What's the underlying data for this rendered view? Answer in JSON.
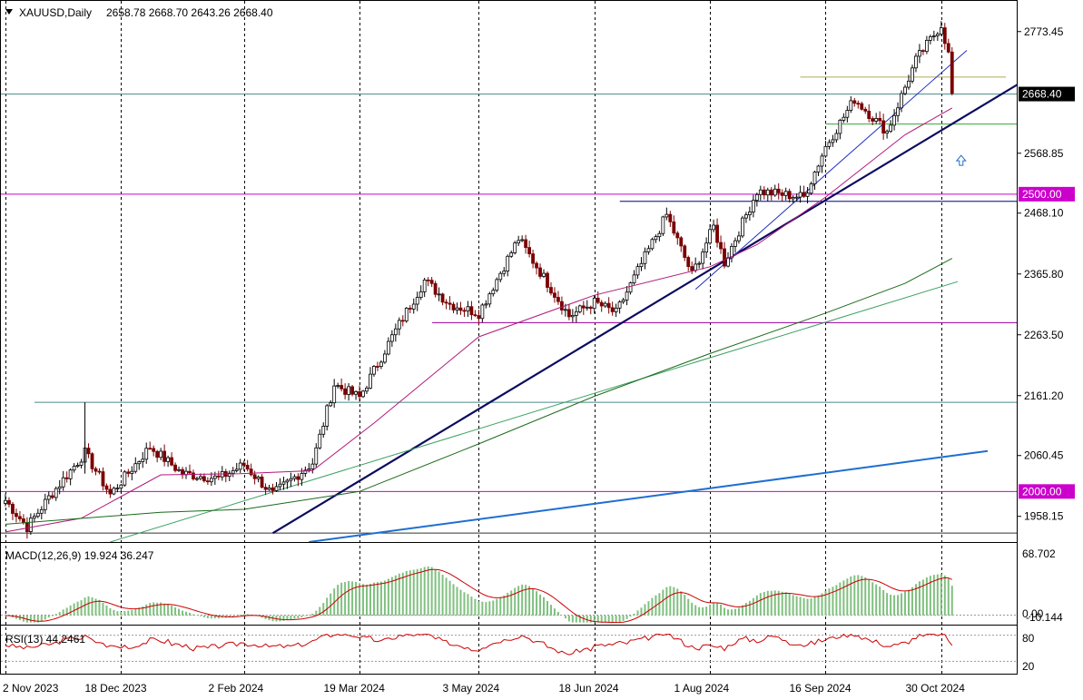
{
  "header": {
    "symbol": "XAUUSD,Daily",
    "ohlc": "2658.78 2668.70 2643.26 2668.40"
  },
  "chart_data": {
    "type": "candlestick",
    "symbol": "XAUUSD",
    "timeframe": "Daily",
    "price_axis": {
      "ticks": [
        1958.15,
        2060.45,
        2161.2,
        2263.5,
        2365.8,
        2468.1,
        2568.85,
        2773.45
      ],
      "ylim": [
        1915,
        2825
      ]
    },
    "time_axis": {
      "labels": [
        "2 Nov 2023",
        "18 Dec 2023",
        "2 Feb 2024",
        "19 Mar 2024",
        "3 May 2024",
        "18 Jun 2024",
        "1 Aug 2024",
        "16 Sep 2024",
        "30 Oct 2024"
      ]
    },
    "price_key_points": [
      [
        "2 Nov 2023",
        1985
      ],
      [
        "10 Nov 2023",
        1940
      ],
      [
        "20 Nov 2023",
        1990
      ],
      [
        "4 Dec 2023",
        2065
      ],
      [
        "13 Dec 2023",
        1995
      ],
      [
        "28 Dec 2023",
        2075
      ],
      [
        "10 Jan 2024",
        2030
      ],
      [
        "24 Jan 2024",
        2022
      ],
      [
        "2 Feb 2024",
        2045
      ],
      [
        "14 Feb 2024",
        1995
      ],
      [
        "29 Feb 2024",
        2048
      ],
      [
        "8 Mar 2024",
        2180
      ],
      [
        "19 Mar 2024",
        2158
      ],
      [
        "1 Apr 2024",
        2260
      ],
      [
        "12 Apr 2024",
        2355
      ],
      [
        "23 Apr 2024",
        2315
      ],
      [
        "3 May 2024",
        2300
      ],
      [
        "20 May 2024",
        2425
      ],
      [
        "7 Jun 2024",
        2295
      ],
      [
        "18 Jun 2024",
        2318
      ],
      [
        "26 Jun 2024",
        2300
      ],
      [
        "16 Jul 2024",
        2465
      ],
      [
        "25 Jul 2024",
        2365
      ],
      [
        "2 Aug 2024",
        2445
      ],
      [
        "7 Aug 2024",
        2385
      ],
      [
        "20 Aug 2024",
        2505
      ],
      [
        "6 Sep 2024",
        2495
      ],
      [
        "16 Sep 2024",
        2580
      ],
      [
        "26 Sep 2024",
        2660
      ],
      [
        "9 Oct 2024",
        2605
      ],
      [
        "21 Oct 2024",
        2725
      ],
      [
        "30 Oct 2024",
        2785
      ],
      [
        "1 Nov 2024",
        2735
      ],
      [
        "4 Nov 2024",
        2668
      ]
    ],
    "indicators": {
      "ma_magenta": [
        [
          "2 Nov 2023",
          1932
        ],
        [
          "1 Dec 2023",
          1955
        ],
        [
          "2 Jan 2024",
          2028
        ],
        [
          "1 Feb 2024",
          2030
        ],
        [
          "29 Feb 2024",
          2035
        ],
        [
          "25 Mar 2024",
          2115
        ],
        [
          "3 May 2024",
          2260
        ],
        [
          "18 Jun 2024",
          2330
        ],
        [
          "1 Aug 2024",
          2378
        ],
        [
          "20 Aug 2024",
          2415
        ],
        [
          "16 Sep 2024",
          2495
        ],
        [
          "16 Oct 2024",
          2600
        ],
        [
          "4 Nov 2024",
          2645
        ]
      ],
      "ma_dark_green": [
        [
          "2 Nov 2023",
          1945
        ],
        [
          "2 Jan 2024",
          1965
        ],
        [
          "2 Feb 2024",
          1970
        ],
        [
          "19 Mar 2024",
          2000
        ],
        [
          "3 May 2024",
          2080
        ],
        [
          "18 Jun 2024",
          2160
        ],
        [
          "1 Aug 2024",
          2232
        ],
        [
          "16 Sep 2024",
          2300
        ],
        [
          "16 Oct 2024",
          2350
        ],
        [
          "4 Nov 2024",
          2392
        ]
      ]
    },
    "horizontal_lines": [
      {
        "price": 2668.4,
        "color": "#4a8a8a",
        "label": "2668.40"
      },
      {
        "price": 2500.0,
        "color": "#cc00cc",
        "label": "2500.00"
      },
      {
        "price": 2000.0,
        "color": "#cc00cc",
        "label": "2000.00"
      },
      {
        "price": 2488.0,
        "color": "#000080"
      },
      {
        "price": 2284.0,
        "color": "#990099"
      },
      {
        "price": 2150.0,
        "color": "#4a8a8a"
      },
      {
        "price": 1930.0,
        "color": "#333333"
      },
      {
        "price": 2697.0,
        "color": "#b5a95a"
      },
      {
        "price": 2618.0,
        "color": "#33aa33"
      }
    ],
    "macd": {
      "label": "MACD(12,26,9) 19.924 36.247",
      "axis_ticks": [
        "68.702",
        "0.00",
        "-10.144"
      ]
    },
    "rsi": {
      "label": "RSI(13) 44.2461",
      "axis_ticks": [
        "80",
        "20"
      ]
    },
    "colors": {
      "candle_bull": "#ffffff",
      "candle_bear": "#7a0000",
      "main_trendline": "#0a0a60",
      "blue_trendline": "#1e6fd0",
      "macd_hist": "#80c080",
      "macd_signal": "#cc0000",
      "rsi_line": "#cc0000"
    }
  }
}
